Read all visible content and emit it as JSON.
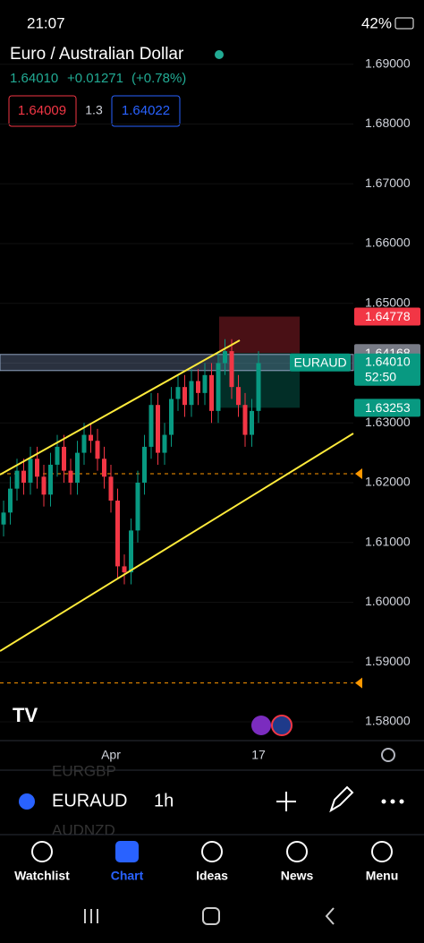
{
  "status_bar": {
    "time": "21:07",
    "battery": "42%"
  },
  "header": {
    "title": "Euro / Australian Dollar",
    "last": "1.64010",
    "change": "+0.01271",
    "change_pct": "(+0.78%)",
    "bid": "1.64009",
    "spread": "1.3",
    "ask": "1.64022"
  },
  "chart": {
    "type": "candlestick",
    "symbol_label": "EURAUD",
    "countdown": "52:50",
    "last_price": {
      "value": 1.6401,
      "label": "1.64010"
    },
    "position": {
      "target": {
        "value": 1.64778,
        "label": "1.64778"
      },
      "entry": {
        "value": 1.64168,
        "label": "1.64168"
      },
      "stop": {
        "value": 1.63253,
        "label": "1.63253"
      }
    },
    "alert_levels": [
      1.6215,
      1.5865
    ],
    "up_color": "#089981",
    "down_color": "#f23645",
    "ylim": [
      1.577,
      1.694
    ],
    "yticks": [
      {
        "value": 1.58,
        "label": "1.58000"
      },
      {
        "value": 1.59,
        "label": "1.59000"
      },
      {
        "value": 1.6,
        "label": "1.60000"
      },
      {
        "value": 1.61,
        "label": "1.61000"
      },
      {
        "value": 1.62,
        "label": "1.62000"
      },
      {
        "value": 1.63,
        "label": "1.63000"
      },
      {
        "value": 1.64,
        "label": "1.64000"
      },
      {
        "value": 1.65,
        "label": "1.65000"
      },
      {
        "value": 1.66,
        "label": "1.66000"
      },
      {
        "value": 1.67,
        "label": "1.67000"
      },
      {
        "value": 1.68,
        "label": "1.68000"
      },
      {
        "value": 1.69,
        "label": "1.69000"
      }
    ],
    "categories": [
      null,
      null,
      null,
      null,
      null,
      null,
      null,
      null,
      null,
      null,
      null,
      null,
      null,
      null,
      null,
      null,
      "Apr",
      null,
      null,
      null,
      null,
      null,
      null,
      null,
      null,
      null,
      null,
      null,
      null,
      null,
      null,
      null,
      null,
      null,
      null,
      null,
      null,
      null,
      "17"
    ],
    "open": [
      1.613,
      1.615,
      1.619,
      1.622,
      1.62,
      1.624,
      1.621,
      1.618,
      1.623,
      1.626,
      1.622,
      1.62,
      1.625,
      1.628,
      1.627,
      1.624,
      1.621,
      1.617,
      1.606,
      1.605,
      1.612,
      1.62,
      1.626,
      1.633,
      1.625,
      1.628,
      1.634,
      1.636,
      1.633,
      1.637,
      1.635,
      1.638,
      1.632,
      1.64,
      1.642,
      1.636,
      1.633,
      1.628,
      1.632
    ],
    "high": [
      1.617,
      1.621,
      1.624,
      1.624,
      1.626,
      1.626,
      1.623,
      1.625,
      1.628,
      1.628,
      1.624,
      1.627,
      1.63,
      1.63,
      1.629,
      1.626,
      1.623,
      1.619,
      1.608,
      1.614,
      1.622,
      1.628,
      1.635,
      1.635,
      1.63,
      1.636,
      1.638,
      1.638,
      1.639,
      1.639,
      1.64,
      1.64,
      1.642,
      1.644,
      1.644,
      1.638,
      1.635,
      1.634,
      1.642
    ],
    "low": [
      1.611,
      1.613,
      1.617,
      1.618,
      1.618,
      1.619,
      1.616,
      1.616,
      1.621,
      1.62,
      1.618,
      1.618,
      1.623,
      1.625,
      1.622,
      1.619,
      1.615,
      1.604,
      1.603,
      1.603,
      1.61,
      1.618,
      1.624,
      1.623,
      1.623,
      1.626,
      1.632,
      1.631,
      1.631,
      1.633,
      1.633,
      1.63,
      1.63,
      1.638,
      1.634,
      1.631,
      1.626,
      1.626,
      1.63
    ],
    "close": [
      1.615,
      1.619,
      1.622,
      1.62,
      1.624,
      1.621,
      1.618,
      1.623,
      1.626,
      1.622,
      1.62,
      1.625,
      1.628,
      1.627,
      1.624,
      1.621,
      1.617,
      1.606,
      1.605,
      1.612,
      1.62,
      1.626,
      1.633,
      1.625,
      1.628,
      1.634,
      1.636,
      1.633,
      1.637,
      1.635,
      1.638,
      1.632,
      1.64,
      1.642,
      1.636,
      1.633,
      1.628,
      1.632,
      1.64
    ]
  },
  "bottom_bar": {
    "symbol": "EURAUD",
    "interval": "1h",
    "prev_symbol": "EURGBP",
    "next_symbol": "AUDNZD"
  },
  "nav": [
    "Watchlist",
    "Chart",
    "Ideas",
    "News",
    "Menu"
  ]
}
